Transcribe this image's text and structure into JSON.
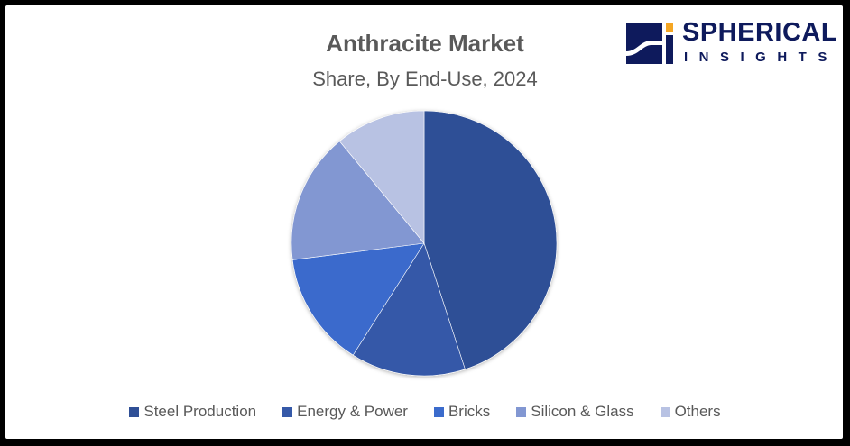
{
  "logo": {
    "line1": "SPHERICAL",
    "line2": "INSIGHTS"
  },
  "chart_data": {
    "type": "pie",
    "title": "Anthracite Market",
    "subtitle": "Share, By End-Use, 2024",
    "categories": [
      "Steel Production",
      "Energy & Power",
      "Bricks",
      "Silicon & Glass",
      "Others"
    ],
    "values": [
      45,
      14,
      14,
      16,
      11
    ],
    "colors": [
      "#2f4f96",
      "#3559a8",
      "#3b6bcc",
      "#8297d2",
      "#b8c2e3"
    ],
    "legend_position": "bottom"
  }
}
